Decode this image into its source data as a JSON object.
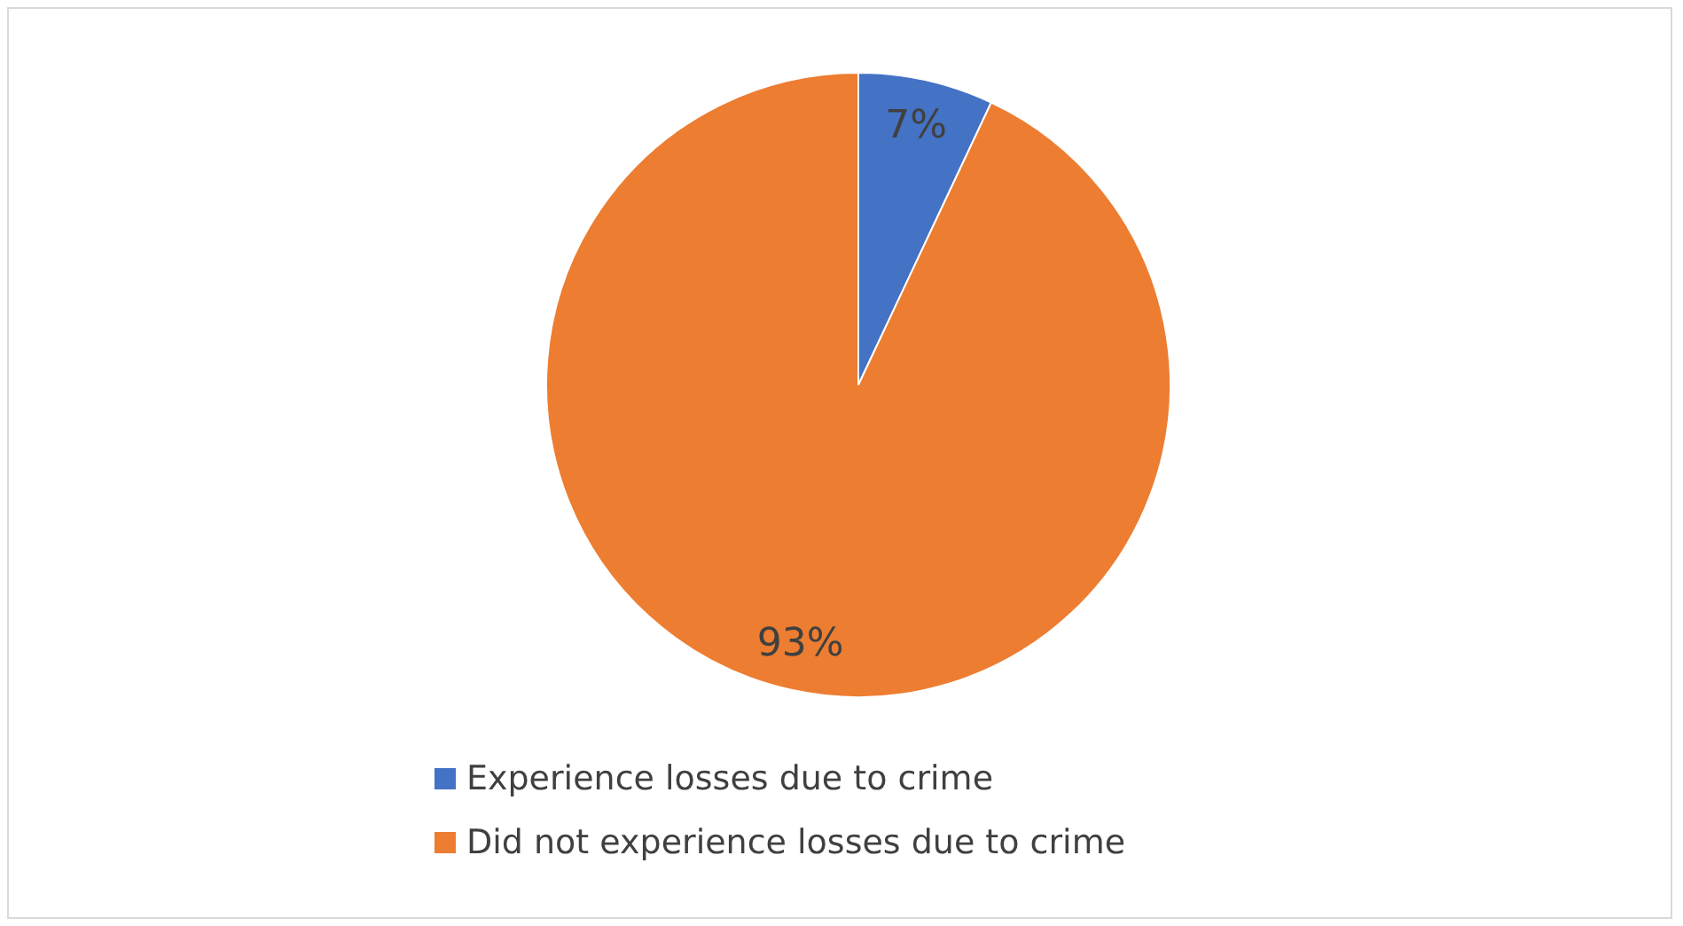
{
  "chart_data": {
    "type": "pie",
    "categories": [
      "Experience losses due to crime",
      "Did not experience losses due to crime"
    ],
    "values": [
      7,
      93
    ],
    "colors": [
      "#4472c4",
      "#ed7d31"
    ],
    "value_labels": [
      "7%",
      "93%"
    ],
    "legend": "bottom"
  }
}
